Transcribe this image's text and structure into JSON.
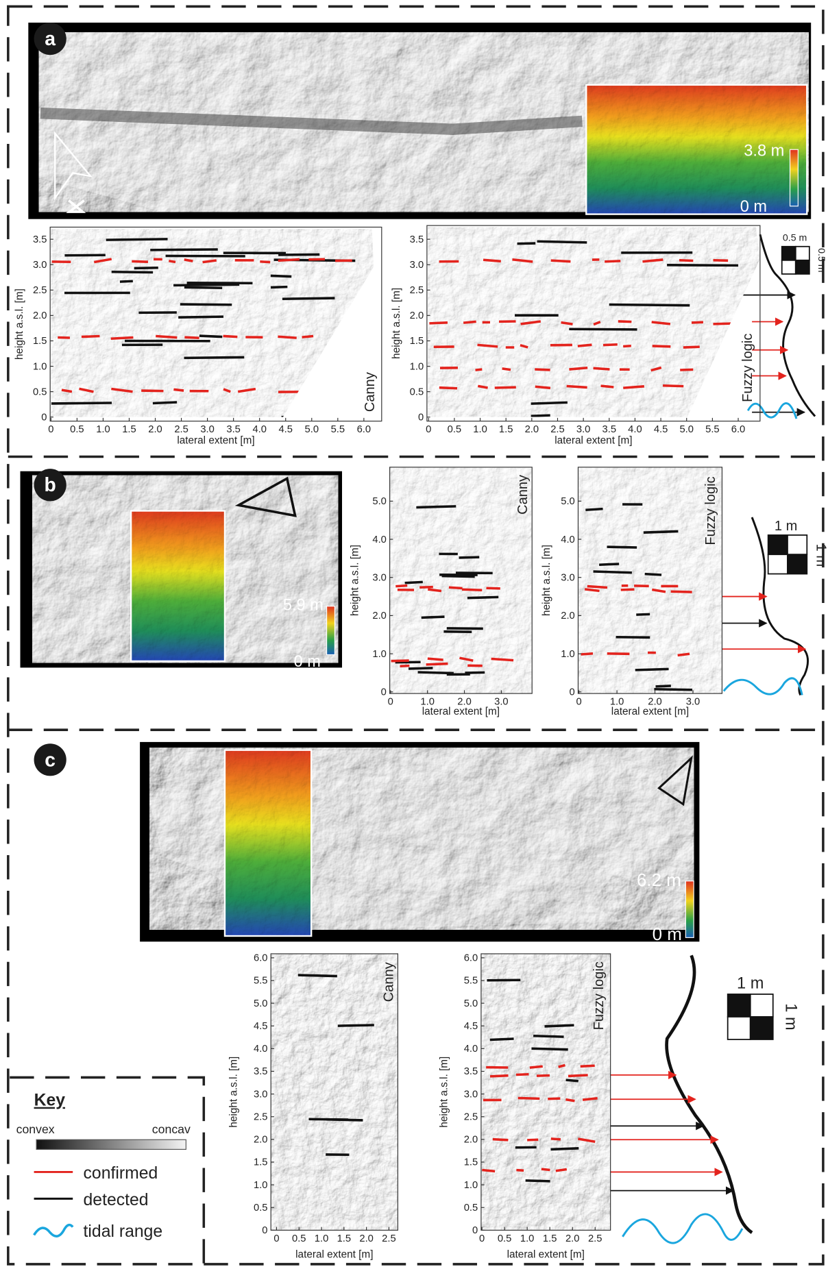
{
  "panels": [
    {
      "label": "a",
      "inset": {
        "max": "3.8 m",
        "min": "0 m"
      },
      "scale": [
        "0.5 m",
        "0.5 m"
      ],
      "plots": [
        {
          "method": "Canny",
          "ylabel": "height a.s.l. [m]",
          "xlabel": "lateral extent [m]",
          "yticks": [
            "0",
            "0.5",
            "1.0",
            "1.5",
            "2.0",
            "2.5",
            "3.0",
            "3.5"
          ],
          "xticks": [
            "0",
            "0.5",
            "1.0",
            "1.5",
            "2.0",
            "2.5",
            "3.0",
            "3.5",
            "4.0",
            "4.5",
            "5.0",
            "5.5",
            "6.0"
          ]
        },
        {
          "method": "Fuzzy logic",
          "ylabel": "height a.s.l. [m]",
          "xlabel": "lateral extent [m]",
          "yticks": [
            "0",
            "0.5",
            "1.0",
            "1.5",
            "2.0",
            "2.5",
            "3.0",
            "3.5"
          ],
          "xticks": [
            "0",
            "0.5",
            "1.0",
            "1.5",
            "2.0",
            "2.5",
            "3.0",
            "3.5",
            "4.0",
            "4.5",
            "5.0",
            "5.5",
            "6.0"
          ]
        }
      ]
    },
    {
      "label": "b",
      "inset": {
        "max": "5.9 m",
        "min": "0 m"
      },
      "scale": [
        "1 m",
        "1 m"
      ],
      "plots": [
        {
          "method": "Canny",
          "ylabel": "height a.s.l. [m]",
          "xlabel": "lateral extent [m]",
          "yticks": [
            "0",
            "1.0",
            "2.0",
            "3.0",
            "4.0",
            "5.0"
          ],
          "xticks": [
            "0",
            "1.0",
            "2.0",
            "3.0"
          ]
        },
        {
          "method": "Fuzzy logic",
          "ylabel": "height a.s.l. [m]",
          "xlabel": "lateral extent [m]",
          "yticks": [
            "0",
            "1.0",
            "2.0",
            "3.0",
            "4.0",
            "5.0"
          ],
          "xticks": [
            "0",
            "1.0",
            "2.0",
            "3.0"
          ]
        }
      ]
    },
    {
      "label": "c",
      "inset": {
        "max": "6.2 m",
        "min": "0 m"
      },
      "scale": [
        "1 m",
        "1 m"
      ],
      "plots": [
        {
          "method": "Canny",
          "ylabel": "height a.s.l. [m]",
          "xlabel": "lateral extent [m]",
          "yticks": [
            "0",
            "0.5",
            "1.0",
            "1.5",
            "2.0",
            "2.5",
            "3.0",
            "3.5",
            "4.0",
            "4.5",
            "5.0",
            "5.5",
            "6.0"
          ],
          "xticks": [
            "0",
            "0.5",
            "1.0",
            "1.5",
            "2.0",
            "2.5"
          ]
        },
        {
          "method": "Fuzzy logic",
          "ylabel": "height a.s.l. [m]",
          "xlabel": "lateral extent [m]",
          "yticks": [
            "0",
            "0.5",
            "1.0",
            "1.5",
            "2.0",
            "2.5",
            "3.0",
            "3.5",
            "4.0",
            "4.5",
            "5.0",
            "5.5",
            "6.0"
          ],
          "xticks": [
            "0",
            "0.5",
            "1.0",
            "1.5",
            "2.0",
            "2.5"
          ]
        }
      ]
    }
  ],
  "key": {
    "title": "Key",
    "convex": "convex",
    "concave": "concav",
    "items": [
      "confirmed",
      "detected",
      "tidal range"
    ]
  }
}
